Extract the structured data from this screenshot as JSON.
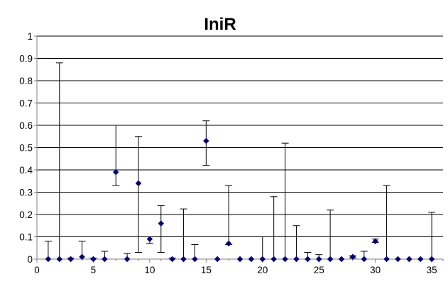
{
  "chart_data": {
    "type": "scatter",
    "title": "IniR",
    "xlabel": "",
    "ylabel": "",
    "xlim": [
      0,
      36
    ],
    "ylim": [
      0,
      1
    ],
    "x_ticks": [
      0,
      5,
      10,
      15,
      20,
      25,
      30,
      35
    ],
    "y_ticks": [
      0,
      0.1,
      0.2,
      0.3,
      0.4,
      0.5,
      0.6,
      0.7,
      0.8,
      0.9,
      1
    ],
    "grid": "horizontal",
    "legend": "none",
    "marker": "diamond",
    "colors": {
      "marker": "#000080",
      "error_bar": "#000000",
      "grid": "#000000",
      "axis": "#808080"
    },
    "points": [
      {
        "x": 1,
        "y": 0,
        "lo": 0,
        "hi": 0.08
      },
      {
        "x": 2,
        "y": 0,
        "lo": 0,
        "hi": 0.88
      },
      {
        "x": 3,
        "y": 0,
        "lo": 0,
        "hi": 0.005
      },
      {
        "x": 4,
        "y": 0.01,
        "lo": 0,
        "hi": 0.08
      },
      {
        "x": 5,
        "y": 0,
        "lo": 0,
        "hi": 0.005
      },
      {
        "x": 6,
        "y": 0,
        "lo": 0,
        "hi": 0.035
      },
      {
        "x": 7,
        "y": 0.39,
        "lo": 0.33,
        "hi": 0.6
      },
      {
        "x": 8,
        "y": 0,
        "lo": 0,
        "hi": 0.025
      },
      {
        "x": 9,
        "y": 0.34,
        "lo": 0.03,
        "hi": 0.55
      },
      {
        "x": 10,
        "y": 0.09,
        "lo": 0.07,
        "hi": 0.1
      },
      {
        "x": 11,
        "y": 0.16,
        "lo": 0.03,
        "hi": 0.24
      },
      {
        "x": 12,
        "y": 0,
        "lo": 0,
        "hi": 0.005
      },
      {
        "x": 13,
        "y": 0,
        "lo": 0,
        "hi": 0.225
      },
      {
        "x": 14,
        "y": 0,
        "lo": 0,
        "hi": 0.065
      },
      {
        "x": 15,
        "y": 0.53,
        "lo": 0.42,
        "hi": 0.62
      },
      {
        "x": 16,
        "y": 0,
        "lo": 0,
        "hi": 0
      },
      {
        "x": 17,
        "y": 0.07,
        "lo": 0.065,
        "hi": 0.33
      },
      {
        "x": 18,
        "y": 0,
        "lo": 0,
        "hi": 0
      },
      {
        "x": 19,
        "y": 0,
        "lo": 0,
        "hi": 0
      },
      {
        "x": 20,
        "y": 0,
        "lo": 0,
        "hi": 0.1
      },
      {
        "x": 21,
        "y": 0,
        "lo": 0,
        "hi": 0.28
      },
      {
        "x": 22,
        "y": 0,
        "lo": 0,
        "hi": 0.52
      },
      {
        "x": 23,
        "y": 0,
        "lo": 0,
        "hi": 0.15
      },
      {
        "x": 24,
        "y": 0,
        "lo": 0,
        "hi": 0.03
      },
      {
        "x": 25,
        "y": 0,
        "lo": 0,
        "hi": 0.02
      },
      {
        "x": 26,
        "y": 0,
        "lo": 0,
        "hi": 0.22
      },
      {
        "x": 27,
        "y": 0,
        "lo": 0,
        "hi": 0
      },
      {
        "x": 28,
        "y": 0.01,
        "lo": 0.005,
        "hi": 0.015
      },
      {
        "x": 29,
        "y": 0,
        "lo": 0,
        "hi": 0.035
      },
      {
        "x": 30,
        "y": 0.08,
        "lo": 0.075,
        "hi": 0.09
      },
      {
        "x": 31,
        "y": 0,
        "lo": 0,
        "hi": 0.33
      },
      {
        "x": 32,
        "y": 0,
        "lo": 0,
        "hi": 0
      },
      {
        "x": 33,
        "y": 0,
        "lo": 0,
        "hi": 0
      },
      {
        "x": 34,
        "y": 0,
        "lo": 0,
        "hi": 0
      },
      {
        "x": 35,
        "y": 0,
        "lo": 0,
        "hi": 0.21
      }
    ]
  }
}
